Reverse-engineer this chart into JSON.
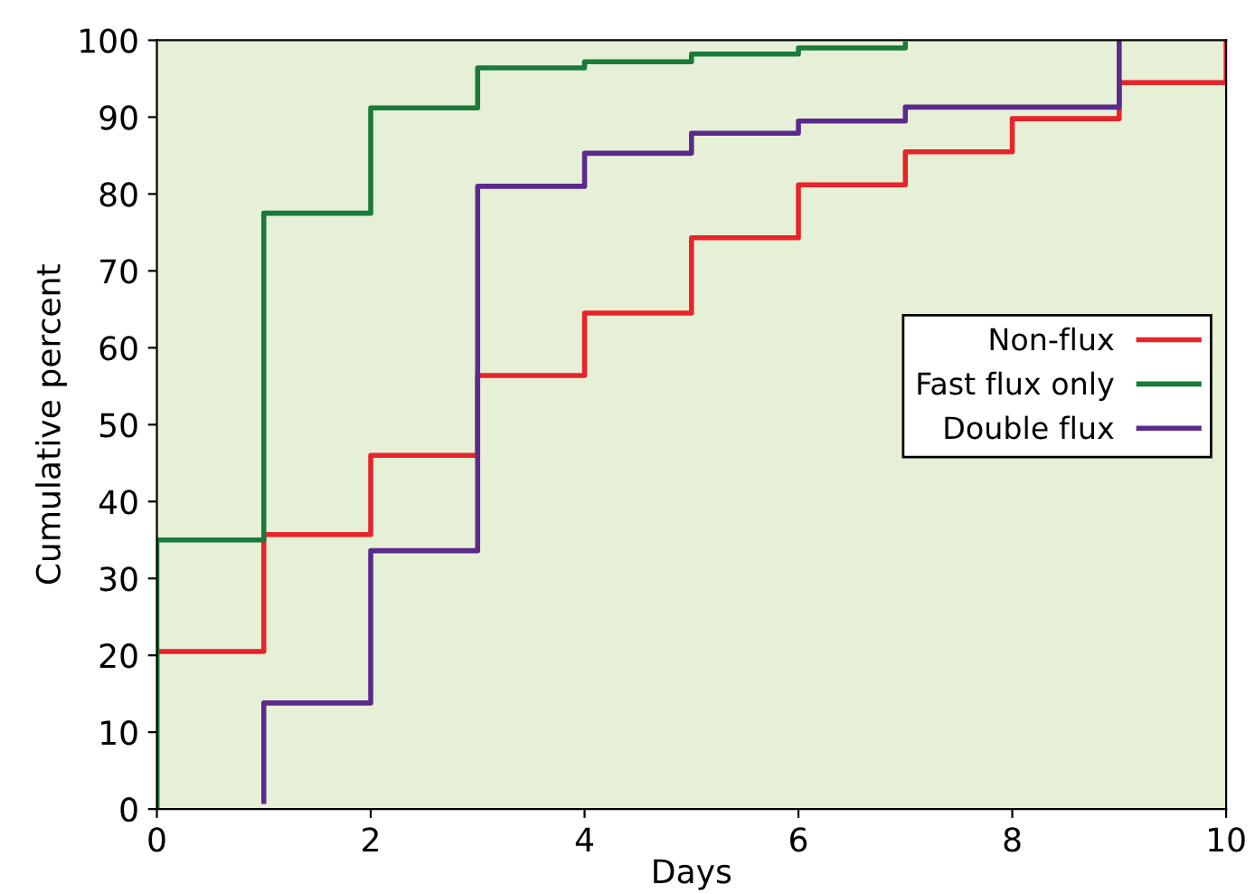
{
  "chart_data": {
    "type": "step",
    "xlabel": "Days",
    "ylabel": "Cumulative percent",
    "xlim": [
      0,
      10
    ],
    "ylim": [
      0,
      100
    ],
    "xticks": [
      0,
      2,
      4,
      6,
      8,
      10
    ],
    "yticks": [
      0,
      10,
      20,
      30,
      40,
      50,
      60,
      70,
      80,
      90,
      100
    ],
    "grid": false,
    "legend": "right",
    "marker": "none",
    "line_style": "solid",
    "series": [
      {
        "name": "Non-flux",
        "color": "#e8232a",
        "x": [
          0,
          0,
          1,
          2,
          3,
          4,
          5,
          6,
          7,
          8,
          9,
          10
        ],
        "values": [
          0,
          20.5,
          35.7,
          46,
          56.4,
          64.5,
          74.3,
          81.2,
          85.5,
          89.8,
          94.5,
          100
        ]
      },
      {
        "name": "Fast flux only",
        "color": "#1a7a3a",
        "x": [
          0,
          0,
          1,
          2,
          3,
          4,
          5,
          6,
          7
        ],
        "values": [
          0,
          35,
          77.5,
          91.2,
          96.4,
          97.2,
          98.2,
          99,
          99.5
        ]
      },
      {
        "name": "Double flux",
        "color": "#5b2a8c",
        "x": [
          1,
          1,
          2,
          3,
          4,
          5,
          6,
          7,
          9
        ],
        "values": [
          1,
          13.8,
          33.6,
          81,
          85.3,
          87.9,
          89.5,
          91.3,
          100
        ]
      }
    ]
  }
}
